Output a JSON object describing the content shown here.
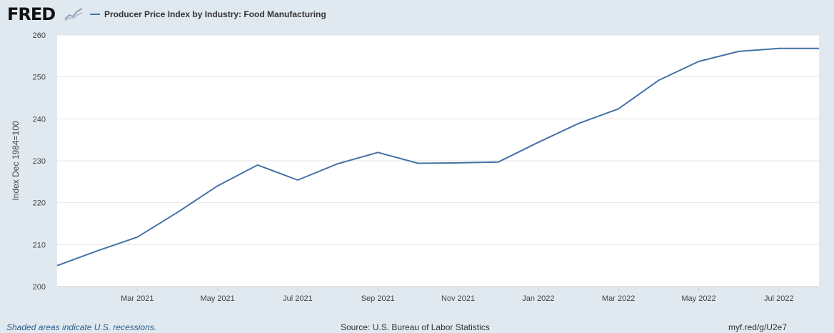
{
  "brand": {
    "logo_text": "FRED"
  },
  "legend": {
    "series_label": "Producer Price Index by Industry: Food Manufacturing"
  },
  "footer": {
    "recession_note": "Shaded areas indicate U.S. recessions.",
    "source": "Source: U.S. Bureau of Labor Statistics",
    "short_link": "myf.red/g/U2e7"
  },
  "colors": {
    "series": "#4572a7",
    "page_bg": "#e1e9f0",
    "plot_bg": "#ffffff",
    "grid": "#e6e6e6"
  },
  "chart_data": {
    "type": "line",
    "ylabel": "Index Dec 1984=100",
    "ylim": [
      200,
      260
    ],
    "y_ticks": [
      200,
      210,
      220,
      230,
      240,
      250,
      260
    ],
    "xlim": [
      "2021-01",
      "2022-08"
    ],
    "x_ticks": [
      {
        "value": "2021-03",
        "label": "Mar 2021"
      },
      {
        "value": "2021-05",
        "label": "May 2021"
      },
      {
        "value": "2021-07",
        "label": "Jul 2021"
      },
      {
        "value": "2021-09",
        "label": "Sep 2021"
      },
      {
        "value": "2021-11",
        "label": "Nov 2021"
      },
      {
        "value": "2022-01",
        "label": "Jan 2022"
      },
      {
        "value": "2022-03",
        "label": "Mar 2022"
      },
      {
        "value": "2022-05",
        "label": "May 2022"
      },
      {
        "value": "2022-07",
        "label": "Jul 2022"
      }
    ],
    "grid": true,
    "series": [
      {
        "name": "Producer Price Index by Industry: Food Manufacturing",
        "x": [
          "2021-01",
          "2021-02",
          "2021-03",
          "2021-04",
          "2021-05",
          "2021-06",
          "2021-07",
          "2021-08",
          "2021-09",
          "2021-10",
          "2021-11",
          "2021-12",
          "2022-01",
          "2022-02",
          "2022-03",
          "2022-04",
          "2022-05",
          "2022-06",
          "2022-07",
          "2022-08"
        ],
        "y": [
          205.0,
          208.5,
          211.8,
          217.7,
          224.0,
          229.0,
          225.4,
          229.3,
          232.0,
          229.4,
          229.5,
          229.7,
          234.4,
          238.9,
          242.4,
          249.2,
          253.7,
          256.1,
          256.8,
          256.8
        ]
      }
    ]
  }
}
